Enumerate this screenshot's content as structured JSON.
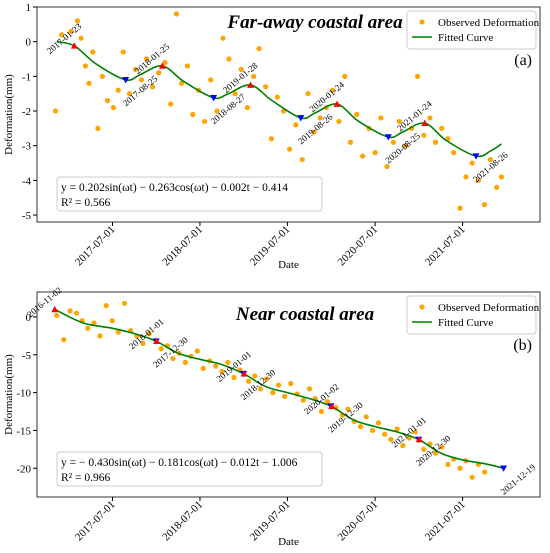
{
  "chart_data": [
    {
      "type": "scatter",
      "title": "Far-away coastal area",
      "panel_label": "(a)",
      "xlabel": "Date",
      "ylabel": "Deformation(mm)",
      "equation": "y = 0.202sin(ωt) − 0.263cos(ωt) − 0.002t − 0.414",
      "r_squared": "R² = 0.566",
      "xlim": [
        "2016-08-20",
        "2022-05-20"
      ],
      "xticks": [
        "2017-07-01",
        "2018-07-01",
        "2019-07-01",
        "2020-07-01",
        "2021-07-01"
      ],
      "ylim": [
        -5.2,
        1.0
      ],
      "yticks": [
        -5,
        -4,
        -3,
        -2,
        -1,
        0,
        1
      ],
      "legend": "upper right",
      "series": [
        {
          "name": "Observed Deformation",
          "color": "#ffa500",
          "mode": "markers",
          "x": [
            "2016-11-05",
            "2016-12-01",
            "2017-01-10",
            "2017-02-05",
            "2017-02-20",
            "2017-03-10",
            "2017-03-25",
            "2017-04-10",
            "2017-05-01",
            "2017-05-20",
            "2017-06-10",
            "2017-07-05",
            "2017-07-25",
            "2017-08-15",
            "2017-09-10",
            "2017-10-05",
            "2017-10-30",
            "2017-11-20",
            "2017-12-15",
            "2018-01-10",
            "2018-02-05",
            "2018-03-01",
            "2018-03-25",
            "2018-04-15",
            "2018-05-10",
            "2018-06-01",
            "2018-06-25",
            "2018-07-20",
            "2018-08-15",
            "2018-09-10",
            "2018-10-05",
            "2018-10-30",
            "2018-11-25",
            "2018-12-20",
            "2019-01-15",
            "2019-02-10",
            "2019-03-05",
            "2019-04-01",
            "2019-04-25",
            "2019-05-20",
            "2019-06-15",
            "2019-07-10",
            "2019-08-05",
            "2019-09-01",
            "2019-09-25",
            "2019-10-20",
            "2019-11-15",
            "2019-12-10",
            "2020-01-05",
            "2020-02-01",
            "2020-02-25",
            "2020-03-20",
            "2020-04-15",
            "2020-05-10",
            "2020-06-05",
            "2020-07-01",
            "2020-07-25",
            "2020-08-20",
            "2020-09-15",
            "2020-10-10",
            "2020-11-05",
            "2020-11-30",
            "2020-12-25",
            "2021-01-20",
            "2021-02-15",
            "2021-03-10",
            "2021-04-05",
            "2021-05-01",
            "2021-05-25",
            "2021-06-20",
            "2021-07-15",
            "2021-08-10",
            "2021-09-05",
            "2021-09-30",
            "2021-10-25",
            "2021-11-20",
            "2021-12-10"
          ],
          "values": [
            -2.0,
            0.2,
            0.3,
            0.6,
            0.1,
            -0.7,
            -1.2,
            -0.3,
            -2.5,
            -1.0,
            -1.7,
            -1.9,
            -1.4,
            -0.3,
            -1.5,
            -0.8,
            -1.1,
            -0.5,
            -1.3,
            -0.9,
            -0.6,
            -1.8,
            0.8,
            -1.2,
            -0.7,
            -2.1,
            -1.4,
            -2.3,
            -1.1,
            -2.0,
            0.1,
            -0.5,
            -1.5,
            -0.8,
            -1.9,
            -1.0,
            -0.2,
            -1.3,
            -2.8,
            -1.6,
            -2.0,
            -3.1,
            -2.4,
            -3.4,
            -1.5,
            -2.6,
            -2.2,
            -1.9,
            -1.4,
            -2.3,
            -1.0,
            -2.9,
            -2.1,
            -3.3,
            -2.5,
            -3.2,
            -2.2,
            -3.6,
            -2.9,
            -2.3,
            -3.0,
            -2.5,
            -1.0,
            -2.7,
            -2.2,
            -2.9,
            -2.5,
            -2.8,
            -3.2,
            -4.8,
            -3.9,
            -3.5,
            -4.0,
            -4.7,
            -3.4,
            -4.2,
            -3.9
          ]
        },
        {
          "name": "Fitted Curve",
          "color": "#008000",
          "mode": "line",
          "x": [
            "2016-11-10",
            "2017-01-23",
            "2017-04-25",
            "2017-08-25",
            "2017-10-25",
            "2018-01-25",
            "2018-04-25",
            "2018-08-27",
            "2018-10-27",
            "2019-01-28",
            "2019-04-28",
            "2019-08-26",
            "2019-10-26",
            "2020-01-24",
            "2020-04-24",
            "2020-08-25",
            "2020-10-25",
            "2021-01-24",
            "2021-04-24",
            "2021-08-26",
            "2021-10-26",
            "2021-12-10"
          ],
          "values": [
            0.0,
            -0.12,
            -0.65,
            -1.1,
            -0.95,
            -0.7,
            -1.15,
            -1.62,
            -1.5,
            -1.25,
            -1.7,
            -2.2,
            -2.05,
            -1.8,
            -2.3,
            -2.75,
            -2.6,
            -2.35,
            -2.85,
            -3.3,
            -3.15,
            -2.95
          ]
        }
      ],
      "annotations": [
        {
          "x": "2017-01-23",
          "y": -0.12,
          "color": "#ff0000",
          "marker": "up"
        },
        {
          "x": "2017-08-25",
          "y": -1.1,
          "color": "#0000ff",
          "marker": "down"
        },
        {
          "x": "2018-01-25",
          "y": -0.7,
          "color": "#ff0000",
          "marker": "up"
        },
        {
          "x": "2018-08-27",
          "y": -1.62,
          "color": "#0000ff",
          "marker": "down"
        },
        {
          "x": "2019-01-28",
          "y": -1.25,
          "color": "#ff0000",
          "marker": "up"
        },
        {
          "x": "2019-08-26",
          "y": -2.2,
          "color": "#0000ff",
          "marker": "down"
        },
        {
          "x": "2020-01-24",
          "y": -1.8,
          "color": "#ff0000",
          "marker": "up"
        },
        {
          "x": "2020-08-25",
          "y": -2.75,
          "color": "#0000ff",
          "marker": "down"
        },
        {
          "x": "2021-01-24",
          "y": -2.35,
          "color": "#ff0000",
          "marker": "up"
        },
        {
          "x": "2021-08-26",
          "y": -3.3,
          "color": "#0000ff",
          "marker": "down"
        }
      ]
    },
    {
      "type": "scatter",
      "title": "Near coastal area",
      "panel_label": "(b)",
      "xlabel": "Date",
      "ylabel": "Deformation(mm)",
      "equation": "y = − 0.430sin(ωt) − 0.181cos(ωt) − 0.012t − 1.006",
      "r_squared": "R² = 0.966",
      "xlim": [
        "2016-08-20",
        "2022-05-20"
      ],
      "xticks": [
        "2017-07-01",
        "2018-07-01",
        "2019-07-01",
        "2020-07-01",
        "2021-07-01"
      ],
      "ylim": [
        -23.8,
        3.3
      ],
      "yticks": [
        -20,
        -15,
        -10,
        -5,
        0
      ],
      "legend": "upper right",
      "series": [
        {
          "name": "Observed Deformation",
          "color": "#ffa500",
          "mode": "markers",
          "x": [
            "2016-11-10",
            "2016-12-10",
            "2017-01-05",
            "2017-02-01",
            "2017-02-25",
            "2017-03-20",
            "2017-04-15",
            "2017-05-10",
            "2017-06-05",
            "2017-06-30",
            "2017-07-25",
            "2017-08-20",
            "2017-09-15",
            "2017-10-10",
            "2017-11-05",
            "2017-12-01",
            "2018-01-20",
            "2018-02-15",
            "2018-03-10",
            "2018-04-05",
            "2018-05-01",
            "2018-05-25",
            "2018-06-20",
            "2018-07-15",
            "2018-08-10",
            "2018-09-05",
            "2018-10-01",
            "2018-10-25",
            "2018-11-20",
            "2018-12-15",
            "2019-01-20",
            "2019-02-15",
            "2019-03-10",
            "2019-04-05",
            "2019-05-01",
            "2019-05-25",
            "2019-06-20",
            "2019-07-15",
            "2019-08-10",
            "2019-09-05",
            "2019-10-01",
            "2019-10-25",
            "2019-11-20",
            "2019-12-15",
            "2020-01-20",
            "2020-02-15",
            "2020-03-10",
            "2020-04-05",
            "2020-05-01",
            "2020-05-25",
            "2020-06-20",
            "2020-07-15",
            "2020-08-10",
            "2020-09-05",
            "2020-10-01",
            "2020-10-25",
            "2020-11-20",
            "2020-12-15",
            "2021-01-20",
            "2021-02-15",
            "2021-03-10",
            "2021-04-05",
            "2021-05-01",
            "2021-05-25",
            "2021-06-20",
            "2021-07-15",
            "2021-08-10",
            "2021-09-05",
            "2021-10-01"
          ],
          "values": [
            0.2,
            -3.0,
            0.8,
            0.5,
            -0.5,
            -1.5,
            -0.8,
            -2.5,
            1.5,
            -0.5,
            -2.0,
            1.8,
            -1.8,
            -2.5,
            -3.5,
            -2.2,
            -4.2,
            -3.8,
            -5.5,
            -4.8,
            -6.0,
            -5.2,
            -4.5,
            -6.8,
            -5.8,
            -6.5,
            -7.2,
            -6.0,
            -8.0,
            -7.0,
            -8.5,
            -7.8,
            -9.5,
            -8.2,
            -10.0,
            -9.0,
            -10.5,
            -8.8,
            -10.2,
            -11.0,
            -9.5,
            -10.8,
            -12.5,
            -11.2,
            -12.0,
            -13.0,
            -12.2,
            -13.8,
            -14.5,
            -13.2,
            -15.0,
            -14.0,
            -15.5,
            -16.2,
            -14.8,
            -17.0,
            -16.0,
            -15.2,
            -17.5,
            -16.8,
            -18.0,
            -17.2,
            -19.5,
            -18.8,
            -20.0,
            -19.0,
            -21.2,
            -19.5,
            -20.5
          ]
        },
        {
          "name": "Fitted Curve",
          "color": "#008000",
          "mode": "line",
          "x": [
            "2016-11-02",
            "2017-03-01",
            "2017-07-01",
            "2017-10-01",
            "2017-12-30",
            "2018-04-01",
            "2018-07-01",
            "2018-10-01",
            "2018-12-30",
            "2019-04-01",
            "2019-07-01",
            "2019-10-01",
            "2019-12-30",
            "2020-04-01",
            "2020-07-01",
            "2020-10-01",
            "2020-12-30",
            "2021-04-01",
            "2021-07-01",
            "2021-10-01",
            "2021-12-19"
          ],
          "values": [
            1.0,
            -0.8,
            -1.5,
            -2.2,
            -3.2,
            -4.8,
            -5.6,
            -6.3,
            -7.5,
            -9.2,
            -10.0,
            -10.8,
            -11.8,
            -13.6,
            -14.5,
            -15.2,
            -16.2,
            -18.0,
            -18.9,
            -19.4,
            -20.0
          ]
        }
      ],
      "annotations": [
        {
          "x": "2016-11-02",
          "y": 1.0,
          "color": "#ff0000",
          "marker": "up"
        },
        {
          "x": "2017-12-30",
          "y": -3.2,
          "color": "#0000ff",
          "marker": "down"
        },
        {
          "x": "2018-01-01",
          "y": -3.2,
          "color": "#ff0000",
          "marker": "up"
        },
        {
          "x": "2018-12-30",
          "y": -7.5,
          "color": "#0000ff",
          "marker": "down"
        },
        {
          "x": "2019-01-01",
          "y": -7.5,
          "color": "#ff0000",
          "marker": "up"
        },
        {
          "x": "2019-12-30",
          "y": -11.8,
          "color": "#0000ff",
          "marker": "down"
        },
        {
          "x": "2020-01-02",
          "y": -11.8,
          "color": "#ff0000",
          "marker": "up"
        },
        {
          "x": "2020-12-30",
          "y": -16.2,
          "color": "#0000ff",
          "marker": "down"
        },
        {
          "x": "2021-01-01",
          "y": -16.2,
          "color": "#ff0000",
          "marker": "up"
        },
        {
          "x": "2021-12-19",
          "y": -20.0,
          "color": "#0000ff",
          "marker": "down"
        }
      ]
    }
  ]
}
